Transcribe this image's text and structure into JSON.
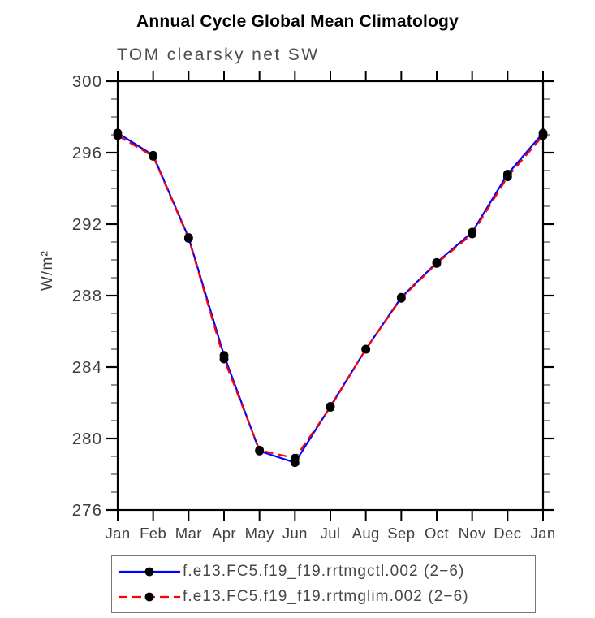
{
  "title": "Annual Cycle Global Mean Climatology",
  "subtitle": "TOM clearsky net SW",
  "ylabel": "W/m²",
  "chart_data": {
    "type": "line",
    "x_categories": [
      "Jan",
      "Feb",
      "Mar",
      "Apr",
      "May",
      "Jun",
      "Jul",
      "Aug",
      "Sep",
      "Oct",
      "Nov",
      "Dec",
      "Jan"
    ],
    "ylim": [
      276,
      300
    ],
    "y_major_ticks": [
      276,
      280,
      284,
      288,
      292,
      296,
      300
    ],
    "y_minor_step": 1,
    "grid": false,
    "legend_position": "bottom",
    "frame_color": "#000000",
    "tick_label_color": "#3f3f3f",
    "series": [
      {
        "name": "f.e13.FC5.f19_f19.rrtmgctl.002 (2−6)",
        "color": "#0000ff",
        "line_style": "solid",
        "marker": "circle",
        "marker_color": "#000000",
        "values": [
          297.1,
          295.85,
          291.25,
          284.65,
          279.3,
          278.65,
          281.8,
          285.0,
          287.9,
          289.85,
          291.55,
          294.8,
          297.1
        ]
      },
      {
        "name": "f.e13.FC5.f19_f19.rrtmglim.002 (2−6)",
        "color": "#ff0000",
        "line_style": "dashed",
        "marker": "circle",
        "marker_color": "#000000",
        "values": [
          296.95,
          295.8,
          291.2,
          284.45,
          279.35,
          278.9,
          281.75,
          285.0,
          287.85,
          289.8,
          291.45,
          294.65,
          296.95
        ]
      }
    ]
  }
}
